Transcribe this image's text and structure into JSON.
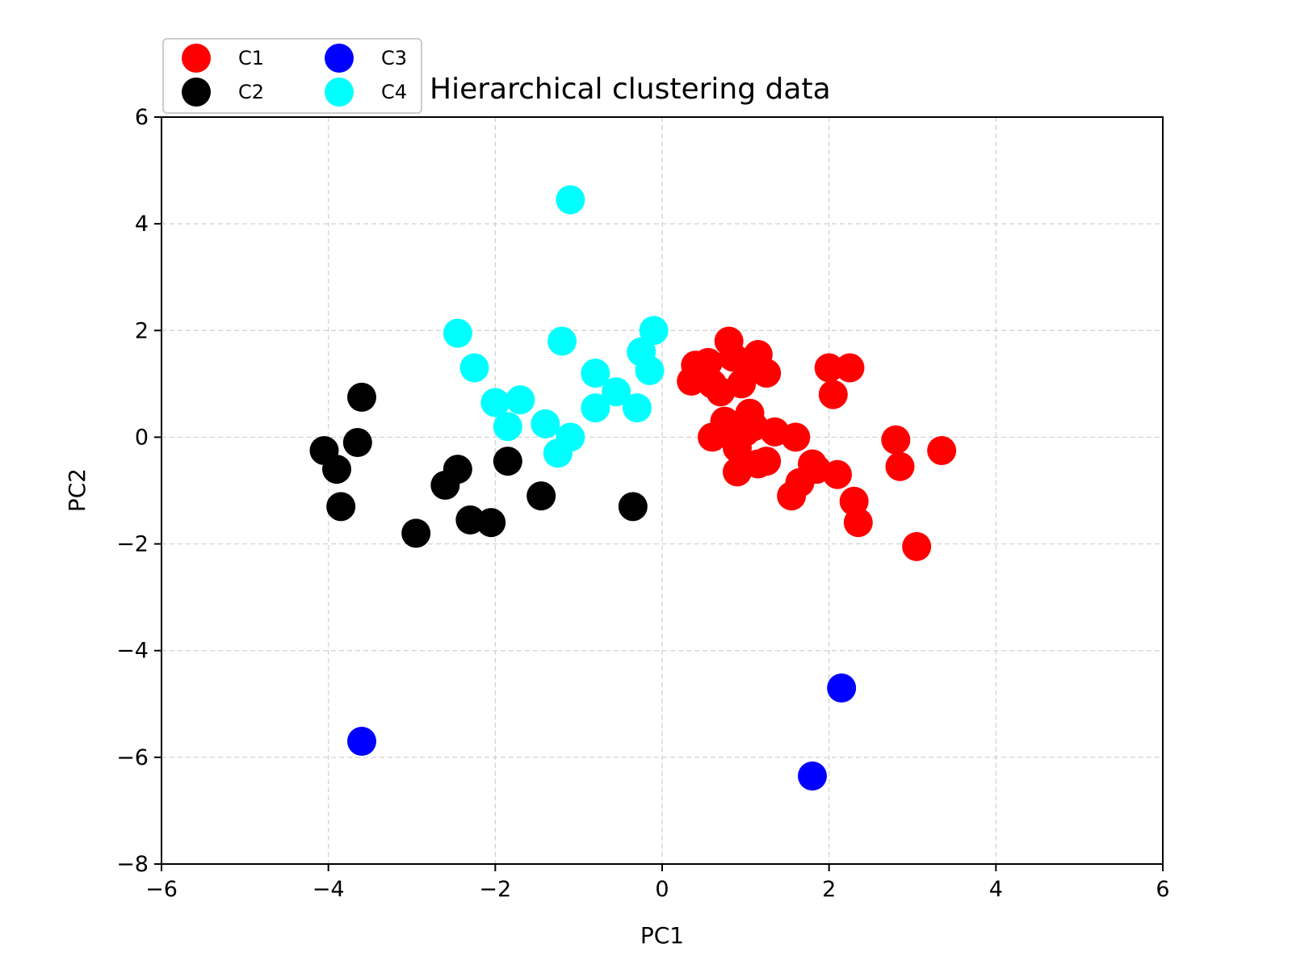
{
  "chart_data": {
    "type": "scatter",
    "title": "Hierarchical clustering data",
    "xlabel": "PC1",
    "ylabel": "PC2",
    "xlim": [
      -6,
      6
    ],
    "ylim": [
      -8,
      6
    ],
    "xticks": [
      -6,
      -4,
      -2,
      0,
      2,
      4,
      6
    ],
    "yticks": [
      -8,
      -6,
      -4,
      -2,
      0,
      2,
      4,
      6
    ],
    "xtick_labels": [
      "−6",
      "−4",
      "−2",
      "0",
      "2",
      "4",
      "6"
    ],
    "ytick_labels": [
      "−8",
      "−6",
      "−4",
      "−2",
      "0",
      "2",
      "4",
      "6"
    ],
    "grid": true,
    "legend_position": "top-left, above plot",
    "series": [
      {
        "name": "C1",
        "color": "#ff0000",
        "points": [
          [
            0.35,
            1.05
          ],
          [
            0.4,
            1.35
          ],
          [
            0.55,
            1.4
          ],
          [
            0.6,
            1.0
          ],
          [
            0.7,
            0.85
          ],
          [
            0.8,
            1.8
          ],
          [
            0.85,
            1.5
          ],
          [
            0.95,
            1.0
          ],
          [
            1.0,
            1.4
          ],
          [
            1.15,
            1.55
          ],
          [
            1.25,
            1.2
          ],
          [
            0.6,
            0.0
          ],
          [
            0.75,
            0.3
          ],
          [
            0.85,
            0.15
          ],
          [
            0.9,
            -0.2
          ],
          [
            1.0,
            0.1
          ],
          [
            1.05,
            0.45
          ],
          [
            1.1,
            0.2
          ],
          [
            1.15,
            -0.5
          ],
          [
            1.25,
            -0.45
          ],
          [
            1.35,
            0.1
          ],
          [
            0.9,
            -0.65
          ],
          [
            1.6,
            0.0
          ],
          [
            1.55,
            -1.1
          ],
          [
            1.65,
            -0.85
          ],
          [
            1.8,
            -0.5
          ],
          [
            1.85,
            -0.6
          ],
          [
            2.0,
            1.3
          ],
          [
            2.05,
            0.8
          ],
          [
            2.25,
            1.3
          ],
          [
            2.1,
            -0.7
          ],
          [
            2.3,
            -1.2
          ],
          [
            2.35,
            -1.6
          ],
          [
            2.8,
            -0.05
          ],
          [
            2.85,
            -0.55
          ],
          [
            3.05,
            -2.05
          ],
          [
            3.35,
            -0.25
          ]
        ]
      },
      {
        "name": "C2",
        "color": "#000000",
        "points": [
          [
            -4.05,
            -0.25
          ],
          [
            -3.9,
            -0.6
          ],
          [
            -3.85,
            -1.3
          ],
          [
            -3.65,
            -0.1
          ],
          [
            -3.6,
            0.75
          ],
          [
            -2.95,
            -1.8
          ],
          [
            -2.6,
            -0.9
          ],
          [
            -2.45,
            -0.6
          ],
          [
            -2.3,
            -1.55
          ],
          [
            -2.05,
            -1.6
          ],
          [
            -1.85,
            -0.45
          ],
          [
            -1.45,
            -1.1
          ],
          [
            -0.35,
            -1.3
          ]
        ]
      },
      {
        "name": "C3",
        "color": "#0000ff",
        "points": [
          [
            -3.6,
            -5.7
          ],
          [
            1.8,
            -6.35
          ],
          [
            2.15,
            -4.7
          ]
        ]
      },
      {
        "name": "C4",
        "color": "#00ffff",
        "points": [
          [
            -2.45,
            1.95
          ],
          [
            -2.25,
            1.3
          ],
          [
            -2.0,
            0.65
          ],
          [
            -1.85,
            0.2
          ],
          [
            -1.7,
            0.7
          ],
          [
            -1.4,
            0.25
          ],
          [
            -1.25,
            -0.3
          ],
          [
            -1.2,
            1.8
          ],
          [
            -1.1,
            0.0
          ],
          [
            -1.1,
            4.45
          ],
          [
            -0.8,
            1.2
          ],
          [
            -0.8,
            0.55
          ],
          [
            -0.55,
            0.85
          ],
          [
            -0.3,
            0.55
          ],
          [
            -0.25,
            1.6
          ],
          [
            -0.15,
            1.25
          ],
          [
            -0.1,
            2.0
          ]
        ]
      }
    ]
  }
}
